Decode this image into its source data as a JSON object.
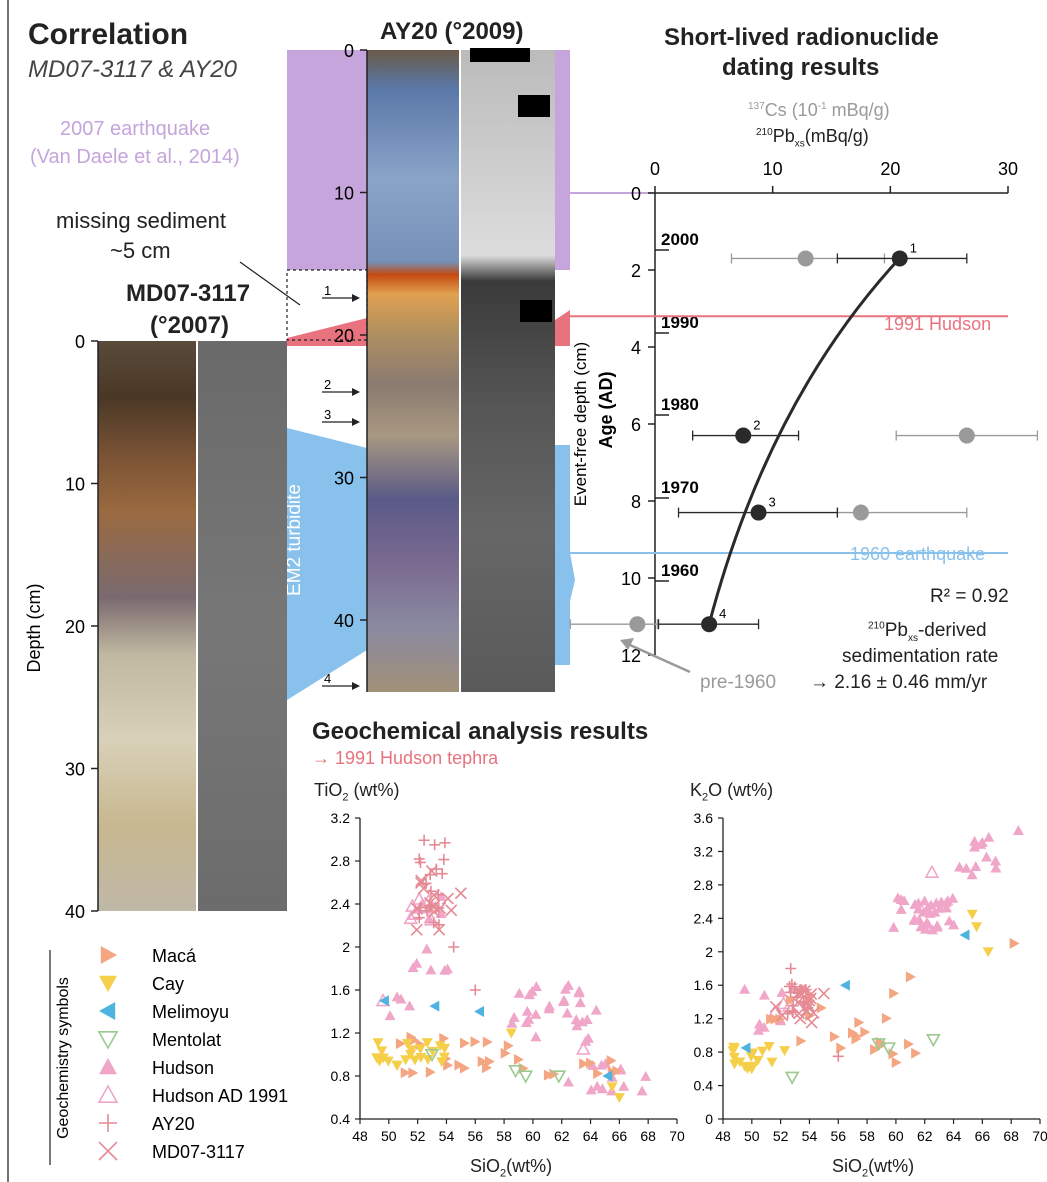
{
  "header": {
    "title": "Correlation",
    "subtitle": "MD07-3117 & AY20"
  },
  "core_ay20": {
    "title": "AY20 (°2009)",
    "depth_ticks": [
      "0",
      "10",
      "20",
      "30",
      "40"
    ],
    "tephra_markers": [
      "1",
      "2",
      "3",
      "4"
    ]
  },
  "core_md": {
    "title_line1": "MD07-3117",
    "title_line2": "(°2007)",
    "depth_label": "Depth (cm)",
    "depth_ticks": [
      "0",
      "10",
      "20",
      "30",
      "40"
    ]
  },
  "annotations": {
    "quake2007_line1": "2007 earthquake",
    "quake2007_line2": "(Van Daele et al., 2014)",
    "missing_line1": "missing sediment",
    "missing_line2": "~5 cm",
    "turbidite": "EM2 turbidite"
  },
  "dating": {
    "title_line1": "Short-lived radionuclide",
    "title_line2": "dating results",
    "cs_label": "Cs (10",
    "cs_label_sup": "137",
    "cs_label_exp": "-1",
    "cs_label_end": " mBq/g)",
    "pb_label": "Pb",
    "pb_label_sup": "210",
    "pb_label_sub": "xs",
    "pb_label_end": "(mBq/g)",
    "x_ticks": [
      "0",
      "10",
      "20",
      "30"
    ],
    "y_ticks": [
      "0",
      "2",
      "4",
      "6",
      "8",
      "10",
      "12"
    ],
    "y_label": "Event-free depth (cm)",
    "age_label": "Age (AD)",
    "age_ticks": [
      "2000",
      "1990",
      "1980",
      "1970",
      "1960"
    ],
    "hudson_label": "1991 Hudson",
    "quake1960_label": "1960 earthquake",
    "r2": "R² = 0.92",
    "rate_line1_sup": "210",
    "rate_line1_pb": "Pb",
    "rate_line1_sub": "xs",
    "rate_line1_end": "-derived",
    "rate_line2": "sedimentation rate",
    "rate_line3": "→ 2.16 ± 0.46 mm/yr",
    "pre1960": "pre-1960",
    "pb_points": [
      {
        "label": "1",
        "value": 20.8,
        "err_low": 15.5,
        "err_high": 26.5,
        "depth": 1.7
      },
      {
        "label": "2",
        "value": 7.5,
        "err_low": 3.2,
        "err_high": 12.2,
        "depth": 6.3
      },
      {
        "label": "3",
        "value": 8.8,
        "err_low": 2.0,
        "err_high": 15.5,
        "depth": 8.3
      },
      {
        "label": "4",
        "value": 4.6,
        "err_low": 0.3,
        "err_high": 8.8,
        "depth": 11.2
      }
    ],
    "cs_points": [
      {
        "value": 12.8,
        "err_low": 6.5,
        "err_high": 19.5,
        "depth": 1.7
      },
      {
        "value": 26.5,
        "err_low": 20.5,
        "err_high": 32.5,
        "depth": 6.3
      },
      {
        "value": 17.5,
        "err_low": 15.5,
        "err_high": 26.5,
        "depth": 8.3
      },
      {
        "value": -1.5,
        "err_low": -7.2,
        "err_high": 0.2,
        "depth": 11.2
      }
    ],
    "hudson_depth": 3.2,
    "quake1960_depth": 9.35
  },
  "geochem": {
    "title": "Geochemical analysis results",
    "subtitle": "→ 1991 Hudson tephra",
    "tio2_ylabel": "TiO",
    "tio2_ylabel_sub": "2",
    "tio2_ylabel_end": " (wt%)",
    "k2o_ylabel": "K",
    "k2o_ylabel_sub": "2",
    "k2o_ylabel_end": "O (wt%)",
    "xlabel": "SiO",
    "xlabel_sub": "2",
    "xlabel_end": "(wt%)",
    "x_ticks": [
      "48",
      "50",
      "52",
      "54",
      "56",
      "58",
      "60",
      "62",
      "64",
      "66",
      "68",
      "70"
    ],
    "tio2_ticks": [
      "3.2",
      "2.8",
      "2.4",
      "2",
      "1.6",
      "1.2",
      "0.8",
      "0.4"
    ],
    "k2o_ticks": [
      "3.6",
      "3.2",
      "2.8",
      "2.4",
      "2",
      "1.6",
      "1.2",
      "0.8",
      "0.4",
      "0"
    ],
    "legend_title": "Geochemistry symbols",
    "legend": [
      {
        "name": "Macá",
        "symbol": "tri-right",
        "color": "#f4a582"
      },
      {
        "name": "Cay",
        "symbol": "tri-down",
        "color": "#f6cf4a"
      },
      {
        "name": "Melimoyu",
        "symbol": "tri-left",
        "color": "#4eb3e0"
      },
      {
        "name": "Mentolat",
        "symbol": "tri-down-open",
        "color": "#9bc98f"
      },
      {
        "name": "Hudson",
        "symbol": "tri-up",
        "color": "#f0a6c8"
      },
      {
        "name": "Hudson AD 1991",
        "symbol": "tri-up-open",
        "color": "#f0a6c8"
      },
      {
        "name": "AY20",
        "symbol": "plus",
        "color": "#e58a94"
      },
      {
        "name": "MD07-3117",
        "symbol": "cross",
        "color": "#e58a94"
      }
    ]
  },
  "colors": {
    "purple": "#c6a4dc",
    "red": "#e8727d",
    "blue": "#88c2ec",
    "dark": "#2a2a2a",
    "grey": "#9a9a9a"
  }
}
